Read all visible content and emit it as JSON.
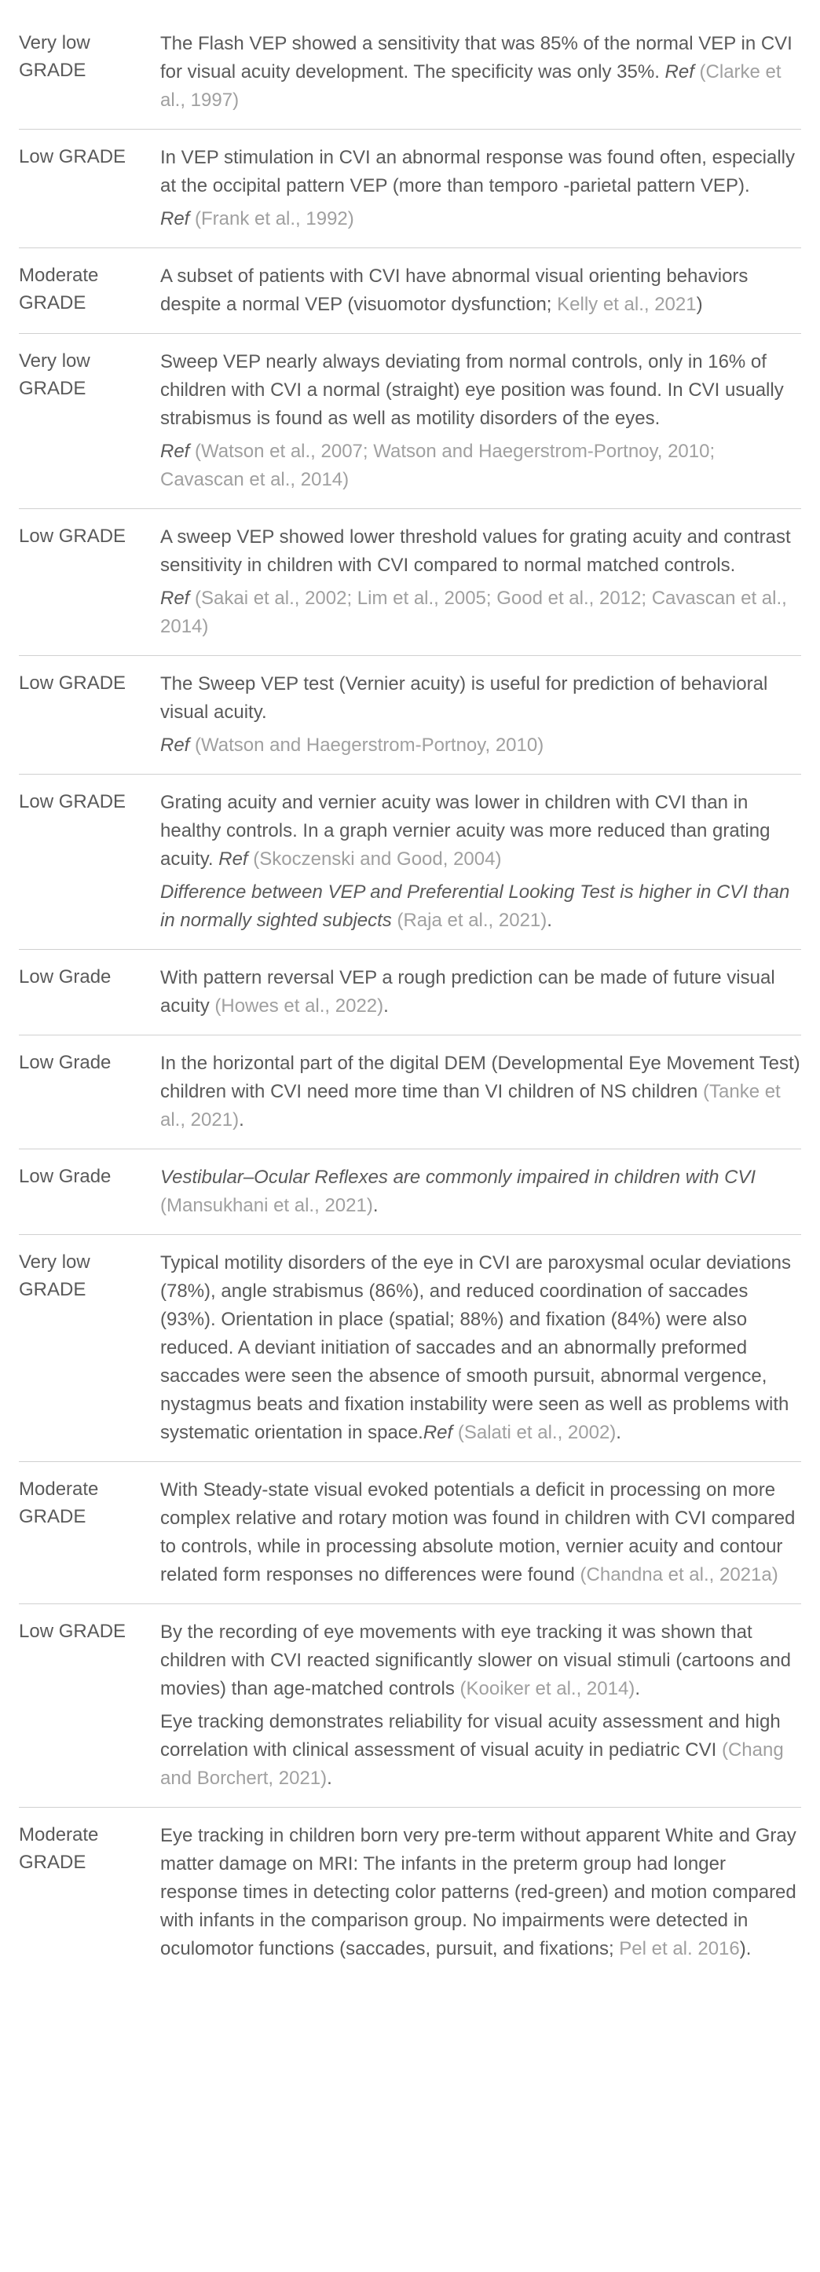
{
  "rows": [
    {
      "grade": "Very low GRADE",
      "blocks": [
        {
          "type": "text",
          "text": "The Flash VEP showed a sensitivity that was 85% of the normal VEP in CVI for visual acuity development. The specificity was only 35%. "
        },
        {
          "type": "reflabel",
          "text": "Ref "
        },
        {
          "type": "citation",
          "text": "(Clarke et al., 1997)"
        }
      ]
    },
    {
      "grade": "Low GRADE",
      "blocks": [
        {
          "type": "text",
          "text": "In VEP stimulation in CVI an abnormal response was found often, especially at the occipital pattern VEP (more than temporo -parietal pattern VEP)."
        },
        {
          "type": "br"
        },
        {
          "type": "reflabel",
          "text": "Ref "
        },
        {
          "type": "citation",
          "text": "(Frank et al., 1992)"
        }
      ]
    },
    {
      "grade": "Moderate GRADE",
      "blocks": [
        {
          "type": "text",
          "text": "A subset of patients with CVI have abnormal visual orienting behaviors despite a normal VEP (visuomotor dysfunction; "
        },
        {
          "type": "citation",
          "text": "Kelly et al., 2021"
        },
        {
          "type": "text",
          "text": ")"
        }
      ]
    },
    {
      "grade": "Very low GRADE",
      "blocks": [
        {
          "type": "text",
          "text": "Sweep VEP nearly always deviating from normal controls, only in 16% of children with CVI a normal (straight) eye position was found. In CVI usually strabismus is found as well as motility disorders of the eyes."
        },
        {
          "type": "br"
        },
        {
          "type": "reflabel",
          "text": "Ref "
        },
        {
          "type": "citation",
          "text": "(Watson et al., 2007; Watson and Haegerstrom-Portnoy, 2010; Cavascan et al., 2014)"
        }
      ]
    },
    {
      "grade": "Low GRADE",
      "blocks": [
        {
          "type": "text",
          "text": "A sweep VEP showed lower threshold values for grating acuity and contrast sensitivity in children with CVI compared to normal matched controls."
        },
        {
          "type": "br"
        },
        {
          "type": "reflabel",
          "text": "Ref "
        },
        {
          "type": "citation",
          "text": "(Sakai et al., 2002; Lim et al., 2005; Good et al., 2012; Cavascan et al., 2014)"
        }
      ]
    },
    {
      "grade": "Low GRADE",
      "blocks": [
        {
          "type": "text",
          "text": "The Sweep VEP test (Vernier acuity) is useful for prediction of behavioral visual acuity."
        },
        {
          "type": "br"
        },
        {
          "type": "reflabel",
          "text": "Ref "
        },
        {
          "type": "citation",
          "text": "(Watson and Haegerstrom-Portnoy, 2010)"
        }
      ]
    },
    {
      "grade": "Low GRADE",
      "blocks": [
        {
          "type": "text",
          "text": "Grating acuity and vernier acuity was lower in children with CVI than in healthy controls. In a graph vernier acuity was more reduced than grating acuity. "
        },
        {
          "type": "reflabel",
          "text": "Ref "
        },
        {
          "type": "citation",
          "text": "(Skoczenski and Good, 2004)"
        },
        {
          "type": "br"
        },
        {
          "type": "italic",
          "text": "Difference between VEP and Preferential Looking Test is higher in CVI than in normally sighted subjects "
        },
        {
          "type": "citation",
          "text": "(Raja et al., 2021)"
        },
        {
          "type": "text",
          "text": "."
        }
      ]
    },
    {
      "grade": "Low Grade",
      "blocks": [
        {
          "type": "text",
          "text": "With pattern reversal VEP a rough prediction can be made of future visual acuity "
        },
        {
          "type": "citation",
          "text": "(Howes et al., 2022)"
        },
        {
          "type": "text",
          "text": "."
        }
      ]
    },
    {
      "grade": "Low Grade",
      "blocks": [
        {
          "type": "text",
          "text": "In the horizontal part of the digital DEM (Developmental Eye Movement Test) children with CVI need more time than VI children of NS children "
        },
        {
          "type": "citation",
          "text": "(Tanke et al., 2021)"
        },
        {
          "type": "text",
          "text": "."
        }
      ]
    },
    {
      "grade": "Low Grade",
      "blocks": [
        {
          "type": "italic",
          "text": "Vestibular–Ocular Reflexes are commonly impaired in children with CVI "
        },
        {
          "type": "citation",
          "text": "(Mansukhani et al., 2021)"
        },
        {
          "type": "text",
          "text": "."
        }
      ]
    },
    {
      "grade": "Very low GRADE",
      "blocks": [
        {
          "type": "text",
          "text": "Typical motility disorders of the eye in CVI are paroxysmal ocular deviations (78%), angle strabismus (86%), and reduced coordination of saccades (93%). Orientation in place (spatial; 88%) and fixation (84%) were also reduced. A deviant initiation of saccades and an abnormally preformed saccades were seen the absence of smooth pursuit, abnormal vergence, nystagmus beats and fixation instability were seen as well as problems with systematic orientation in space."
        },
        {
          "type": "reflabel",
          "text": "Ref "
        },
        {
          "type": "citation",
          "text": "(Salati et al., 2002)"
        },
        {
          "type": "text",
          "text": "."
        }
      ]
    },
    {
      "grade": "Moderate GRADE",
      "blocks": [
        {
          "type": "text",
          "text": "With Steady-state visual evoked potentials a deficit in processing on more complex relative and rotary motion was found in children with CVI compared to controls, while in processing absolute motion, vernier acuity and contour related form responses no differences were found "
        },
        {
          "type": "citation",
          "text": "(Chandna et al., 2021a)"
        }
      ]
    },
    {
      "grade": "Low GRADE",
      "blocks": [
        {
          "type": "text",
          "text": "By the recording of eye movements with eye tracking it was shown that children with CVI reacted significantly slower on visual stimuli (cartoons and movies) than age-matched controls "
        },
        {
          "type": "citation",
          "text": "(Kooiker et al., 2014)"
        },
        {
          "type": "text",
          "text": "."
        },
        {
          "type": "br"
        },
        {
          "type": "text",
          "text": "Eye tracking demonstrates reliability for visual acuity assessment and high correlation with clinical assessment of visual acuity in pediatric CVI "
        },
        {
          "type": "citation",
          "text": "(Chang and Borchert, 2021)"
        },
        {
          "type": "text",
          "text": "."
        }
      ]
    },
    {
      "grade": "Moderate GRADE",
      "blocks": [
        {
          "type": "text",
          "text": "Eye tracking in children born very pre-term without apparent White and Gray matter damage on MRI: The infants in the preterm group had longer response times in detecting color patterns (red-green) and motion compared with infants in the comparison group. No impairments were detected in oculomotor functions (saccades, pursuit, and fixations; "
        },
        {
          "type": "citation",
          "text": "Pel et al. 2016"
        },
        {
          "type": "text",
          "text": ")."
        }
      ]
    }
  ]
}
